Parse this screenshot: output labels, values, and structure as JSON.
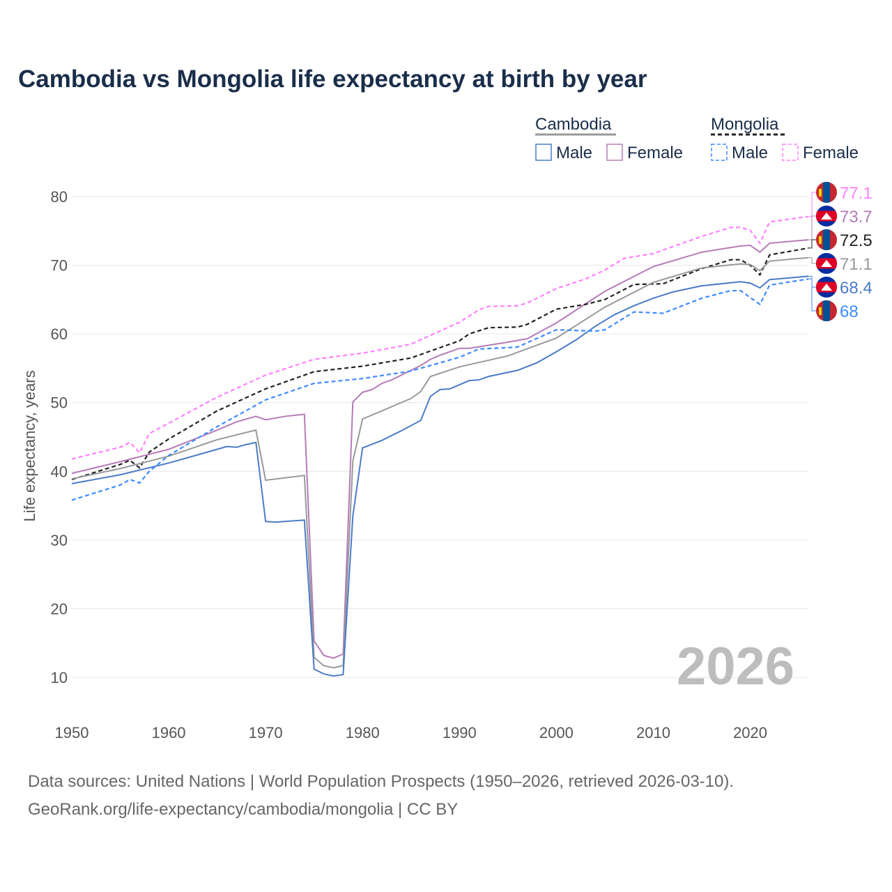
{
  "title": "Cambodia vs Mongolia life expectancy at birth by year",
  "source_line1": "Data sources: United Nations | World Population Prospects (1950–2026, retrieved 2026-03-10).",
  "source_line2": "GeoRank.org/life-expectancy/cambodia/mongolia | CC BY",
  "year_watermark": "2026",
  "legend": {
    "groups": [
      {
        "name": "Cambodia",
        "color": "#999999",
        "dash": false,
        "items": [
          {
            "label": "Male",
            "color": "#4a7bc8"
          },
          {
            "label": "Female",
            "color": "#b57bb8"
          }
        ]
      },
      {
        "name": "Mongolia",
        "color": "#222222",
        "dash": true,
        "items": [
          {
            "label": "Male",
            "color": "#3d8bff"
          },
          {
            "label": "Female",
            "color": "#ff80ff"
          }
        ]
      }
    ]
  },
  "chart_data": {
    "type": "line",
    "title": "Cambodia vs Mongolia life expectancy at birth by year",
    "xlabel": "",
    "ylabel": "Life expectancy, years",
    "xlim": [
      1950,
      2026
    ],
    "ylim": [
      10,
      80
    ],
    "xticks": [
      1950,
      1960,
      1970,
      1980,
      1990,
      2000,
      2010,
      2020
    ],
    "yticks": [
      10,
      20,
      30,
      40,
      50,
      60,
      70,
      80
    ],
    "grid": true,
    "legend_position": "top-right",
    "series": [
      {
        "name": "Mongolia Female",
        "country": "mongolia",
        "color": "#ff80ff",
        "dash": true,
        "end_label": "77.1",
        "points": [
          [
            1950,
            41.8
          ],
          [
            1955,
            43.5
          ],
          [
            1956,
            44.2
          ],
          [
            1957,
            42.7
          ],
          [
            1958,
            45.5
          ],
          [
            1960,
            47.0
          ],
          [
            1965,
            50.8
          ],
          [
            1970,
            54.0
          ],
          [
            1975,
            56.3
          ],
          [
            1980,
            57.2
          ],
          [
            1985,
            58.5
          ],
          [
            1990,
            61.7
          ],
          [
            1992,
            63.5
          ],
          [
            1993,
            64.0
          ],
          [
            1996,
            64.1
          ],
          [
            1997,
            64.5
          ],
          [
            2000,
            66.6
          ],
          [
            2003,
            68.0
          ],
          [
            2005,
            69.3
          ],
          [
            2007,
            71.0
          ],
          [
            2010,
            71.7
          ],
          [
            2015,
            74.2
          ],
          [
            2018,
            75.5
          ],
          [
            2019,
            75.5
          ],
          [
            2020,
            75.1
          ],
          [
            2021,
            73.2
          ],
          [
            2022,
            76.3
          ],
          [
            2026,
            77.1
          ]
        ]
      },
      {
        "name": "Cambodia Female",
        "country": "cambodia",
        "color": "#b57bb8",
        "dash": false,
        "end_label": "73.7",
        "points": [
          [
            1950,
            39.7
          ],
          [
            1955,
            41.4
          ],
          [
            1960,
            43.2
          ],
          [
            1965,
            46.0
          ],
          [
            1967,
            47.2
          ],
          [
            1969,
            48.0
          ],
          [
            1970,
            47.5
          ],
          [
            1972,
            48.0
          ],
          [
            1974,
            48.3
          ],
          [
            1975,
            15.3
          ],
          [
            1976,
            13.2
          ],
          [
            1977,
            12.8
          ],
          [
            1978,
            13.4
          ],
          [
            1979,
            50.1
          ],
          [
            1980,
            51.5
          ],
          [
            1981,
            51.9
          ],
          [
            1982,
            52.8
          ],
          [
            1983,
            53.3
          ],
          [
            1984,
            54.0
          ],
          [
            1985,
            54.7
          ],
          [
            1986,
            55.4
          ],
          [
            1987,
            56.3
          ],
          [
            1988,
            56.9
          ],
          [
            1989,
            57.4
          ],
          [
            1990,
            57.9
          ],
          [
            1991,
            57.9
          ],
          [
            1995,
            58.8
          ],
          [
            1997,
            59.3
          ],
          [
            2000,
            61.6
          ],
          [
            2005,
            66.2
          ],
          [
            2010,
            69.8
          ],
          [
            2015,
            71.9
          ],
          [
            2019,
            72.8
          ],
          [
            2020,
            72.9
          ],
          [
            2021,
            71.9
          ],
          [
            2022,
            73.2
          ],
          [
            2026,
            73.7
          ]
        ]
      },
      {
        "name": "Mongolia",
        "country": "mongolia",
        "color": "#222222",
        "dash": true,
        "end_label": "72.5",
        "points": [
          [
            1950,
            38.8
          ],
          [
            1955,
            41.0
          ],
          [
            1956,
            41.6
          ],
          [
            1957,
            40.5
          ],
          [
            1958,
            42.8
          ],
          [
            1960,
            44.7
          ],
          [
            1965,
            48.8
          ],
          [
            1970,
            52.0
          ],
          [
            1975,
            54.5
          ],
          [
            1980,
            55.3
          ],
          [
            1985,
            56.5
          ],
          [
            1990,
            59.0
          ],
          [
            1991,
            60.0
          ],
          [
            1993,
            60.9
          ],
          [
            1996,
            61.0
          ],
          [
            1997,
            61.4
          ],
          [
            2000,
            63.6
          ],
          [
            2003,
            64.3
          ],
          [
            2005,
            65.0
          ],
          [
            2008,
            67.2
          ],
          [
            2011,
            67.3
          ],
          [
            2015,
            69.5
          ],
          [
            2018,
            70.8
          ],
          [
            2019,
            70.8
          ],
          [
            2020,
            70.0
          ],
          [
            2021,
            68.6
          ],
          [
            2022,
            71.5
          ],
          [
            2026,
            72.5
          ]
        ]
      },
      {
        "name": "Cambodia",
        "country": "cambodia",
        "color": "#999999",
        "dash": false,
        "end_label": "71.1",
        "points": [
          [
            1950,
            38.9
          ],
          [
            1955,
            40.4
          ],
          [
            1960,
            42.2
          ],
          [
            1965,
            44.6
          ],
          [
            1969,
            46.0
          ],
          [
            1970,
            38.7
          ],
          [
            1974,
            39.4
          ],
          [
            1975,
            12.9
          ],
          [
            1976,
            11.7
          ],
          [
            1977,
            11.4
          ],
          [
            1978,
            11.7
          ],
          [
            1979,
            41.5
          ],
          [
            1980,
            47.6
          ],
          [
            1985,
            50.6
          ],
          [
            1986,
            51.6
          ],
          [
            1987,
            53.8
          ],
          [
            1990,
            55.2
          ],
          [
            1995,
            56.8
          ],
          [
            2000,
            59.4
          ],
          [
            2005,
            63.9
          ],
          [
            2010,
            67.5
          ],
          [
            2015,
            69.6
          ],
          [
            2019,
            70.2
          ],
          [
            2020,
            70.1
          ],
          [
            2021,
            69.2
          ],
          [
            2022,
            70.6
          ],
          [
            2026,
            71.1
          ]
        ]
      },
      {
        "name": "Cambodia Male",
        "country": "cambodia",
        "color": "#4a7bc8",
        "dash": false,
        "end_label": "68.4",
        "points": [
          [
            1950,
            38.2
          ],
          [
            1955,
            39.5
          ],
          [
            1960,
            41.2
          ],
          [
            1965,
            43.2
          ],
          [
            1966,
            43.6
          ],
          [
            1967,
            43.5
          ],
          [
            1968,
            43.9
          ],
          [
            1969,
            44.2
          ],
          [
            1970,
            32.7
          ],
          [
            1971,
            32.6
          ],
          [
            1974,
            32.9
          ],
          [
            1975,
            11.2
          ],
          [
            1976,
            10.5
          ],
          [
            1977,
            10.2
          ],
          [
            1978,
            10.4
          ],
          [
            1979,
            33.5
          ],
          [
            1980,
            43.4
          ],
          [
            1982,
            44.5
          ],
          [
            1984,
            45.9
          ],
          [
            1986,
            47.4
          ],
          [
            1987,
            50.9
          ],
          [
            1988,
            51.9
          ],
          [
            1989,
            52.0
          ],
          [
            1991,
            53.2
          ],
          [
            1992,
            53.3
          ],
          [
            1993,
            53.8
          ],
          [
            1996,
            54.7
          ],
          [
            1998,
            55.8
          ],
          [
            2000,
            57.4
          ],
          [
            2002,
            59.1
          ],
          [
            2004,
            61.1
          ],
          [
            2006,
            62.8
          ],
          [
            2008,
            64.1
          ],
          [
            2010,
            65.2
          ],
          [
            2012,
            66.1
          ],
          [
            2015,
            67.0
          ],
          [
            2019,
            67.6
          ],
          [
            2020,
            67.4
          ],
          [
            2021,
            66.7
          ],
          [
            2022,
            67.9
          ],
          [
            2026,
            68.4
          ]
        ]
      },
      {
        "name": "Mongolia Male",
        "country": "mongolia",
        "color": "#3d8bff",
        "dash": true,
        "end_label": "68",
        "points": [
          [
            1950,
            35.8
          ],
          [
            1955,
            38.0
          ],
          [
            1956,
            38.8
          ],
          [
            1957,
            38.3
          ],
          [
            1958,
            40.0
          ],
          [
            1960,
            42.3
          ],
          [
            1965,
            46.5
          ],
          [
            1970,
            50.4
          ],
          [
            1975,
            52.8
          ],
          [
            1980,
            53.5
          ],
          [
            1985,
            54.6
          ],
          [
            1990,
            56.6
          ],
          [
            1992,
            57.8
          ],
          [
            1995,
            58.0
          ],
          [
            1996,
            58.1
          ],
          [
            2000,
            60.6
          ],
          [
            2004,
            60.4
          ],
          [
            2005,
            60.6
          ],
          [
            2008,
            63.2
          ],
          [
            2011,
            63.0
          ],
          [
            2015,
            65.2
          ],
          [
            2018,
            66.3
          ],
          [
            2019,
            66.3
          ],
          [
            2020,
            65.3
          ],
          [
            2021,
            64.3
          ],
          [
            2022,
            67.1
          ],
          [
            2026,
            68.0
          ]
        ]
      }
    ]
  }
}
